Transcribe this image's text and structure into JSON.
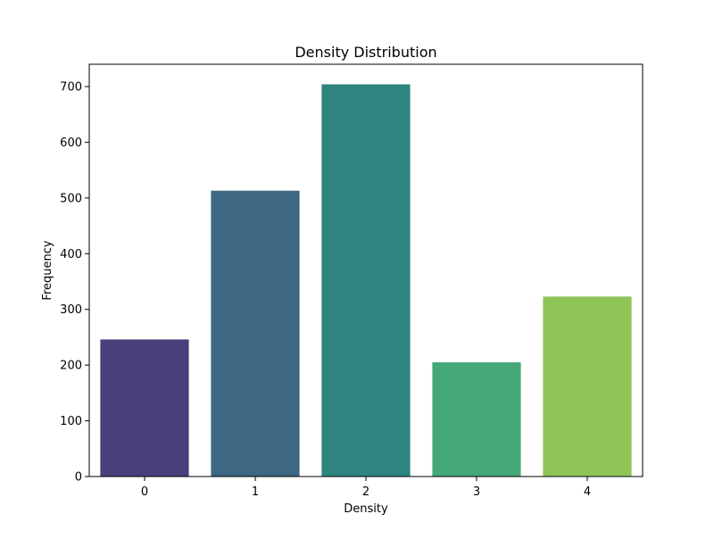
{
  "chart_data": {
    "type": "bar",
    "title": "Density Distribution",
    "xlabel": "Density",
    "ylabel": "Frequency",
    "categories": [
      "0",
      "1",
      "2",
      "3",
      "4"
    ],
    "values": [
      246,
      513,
      704,
      205,
      323
    ],
    "ylim": [
      0,
      740
    ],
    "yticks": [
      0,
      100,
      200,
      300,
      400,
      500,
      600,
      700
    ],
    "ytick_labels": [
      "0",
      "100",
      "200",
      "300",
      "400",
      "500",
      "600",
      "700"
    ],
    "colors": [
      "#4a3f7b",
      "#3d6782",
      "#2e8580",
      "#45a878",
      "#8fc457"
    ],
    "grid": false,
    "legend": "none"
  }
}
